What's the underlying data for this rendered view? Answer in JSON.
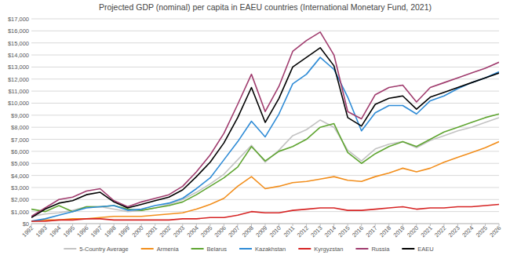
{
  "chart_data": {
    "type": "line",
    "title": "Projected GDP (nominal) per capita in EAEU countries (International Monetary Fund, 2021)",
    "x": [
      1992,
      1993,
      1994,
      1995,
      1996,
      1997,
      1998,
      1999,
      2000,
      2001,
      2002,
      2003,
      2004,
      2005,
      2006,
      2007,
      2008,
      2009,
      2010,
      2011,
      2012,
      2013,
      2014,
      2015,
      2016,
      2017,
      2018,
      2019,
      2020,
      2021,
      2022,
      2023,
      2024,
      2025,
      2026
    ],
    "xlim": [
      1992,
      2026
    ],
    "xticks": [
      1992,
      1993,
      1994,
      1995,
      1996,
      1997,
      1998,
      1999,
      2000,
      2001,
      2002,
      2003,
      2004,
      2005,
      2006,
      2007,
      2008,
      2009,
      2010,
      2011,
      2012,
      2013,
      2014,
      2015,
      2016,
      2017,
      2018,
      2019,
      2020,
      2021,
      2022,
      2023,
      2024,
      2025,
      2026
    ],
    "ylim": [
      0,
      17000
    ],
    "yticks": [
      {
        "value": 0,
        "label": "$0"
      },
      {
        "value": 1000,
        "label": "$1,000"
      },
      {
        "value": 2000,
        "label": "$2,000"
      },
      {
        "value": 3000,
        "label": "$3,000"
      },
      {
        "value": 4000,
        "label": "$4,000"
      },
      {
        "value": 5000,
        "label": "$5,000"
      },
      {
        "value": 6000,
        "label": "$6,000"
      },
      {
        "value": 7000,
        "label": "$7,000"
      },
      {
        "value": 8000,
        "label": "$8,000"
      },
      {
        "value": 9000,
        "label": "$9,000"
      },
      {
        "value": 10000,
        "label": "$10,000"
      },
      {
        "value": 11000,
        "label": "$11,000"
      },
      {
        "value": 12000,
        "label": "$12,000"
      },
      {
        "value": 13000,
        "label": "$13,000"
      },
      {
        "value": 14000,
        "label": "$14,000"
      },
      {
        "value": 15000,
        "label": "$15,000"
      },
      {
        "value": 16000,
        "label": "$16,000"
      },
      {
        "value": 17000,
        "label": "$17,000"
      }
    ],
    "grid": true,
    "legend": "bottom",
    "series": [
      {
        "name": "5-Country Average",
        "color": "#c3c3c3",
        "values": [
          600,
          800,
          900,
          1100,
          1400,
          1400,
          1200,
          1000,
          1100,
          1300,
          1600,
          2000,
          2600,
          3300,
          4100,
          5300,
          6500,
          5100,
          6100,
          7300,
          7800,
          8600,
          8000,
          6100,
          5200,
          6200,
          6600,
          6800,
          6300,
          6900,
          7300,
          7700,
          8000,
          8400,
          8800
        ]
      },
      {
        "name": "Armenia",
        "color": "#f28e1c",
        "values": [
          200,
          300,
          300,
          400,
          400,
          500,
          600,
          600,
          600,
          700,
          800,
          900,
          1200,
          1600,
          2100,
          3100,
          3900,
          2900,
          3100,
          3400,
          3500,
          3700,
          3900,
          3600,
          3500,
          3900,
          4200,
          4600,
          4300,
          4600,
          5100,
          5500,
          5900,
          6300,
          6800
        ]
      },
      {
        "name": "Belarus",
        "color": "#5fa531",
        "values": [
          1200,
          1000,
          1500,
          1000,
          1400,
          1400,
          1500,
          1200,
          1100,
          1300,
          1500,
          1800,
          2400,
          3100,
          3800,
          4700,
          6400,
          5200,
          6000,
          6400,
          7000,
          8000,
          8300,
          5900,
          5000,
          5800,
          6400,
          6800,
          6400,
          7000,
          7600,
          8000,
          8400,
          8800,
          9100
        ]
      },
      {
        "name": "Kazakhstan",
        "color": "#2e8bd6",
        "values": [
          200,
          400,
          700,
          1000,
          1300,
          1400,
          1500,
          1100,
          1200,
          1500,
          1700,
          2100,
          2900,
          3800,
          5300,
          6800,
          8500,
          7200,
          9100,
          11600,
          12400,
          13800,
          12800,
          10500,
          7700,
          9200,
          9800,
          9800,
          9100,
          10200,
          10600,
          11200,
          11700,
          12100,
          12600
        ]
      },
      {
        "name": "Kyrgyzstan",
        "color": "#d62424",
        "values": [
          200,
          200,
          300,
          300,
          400,
          400,
          300,
          300,
          300,
          300,
          300,
          400,
          400,
          500,
          500,
          700,
          1000,
          900,
          900,
          1100,
          1200,
          1300,
          1300,
          1100,
          1100,
          1200,
          1300,
          1400,
          1200,
          1300,
          1300,
          1400,
          1400,
          1500,
          1600
        ]
      },
      {
        "name": "Russia",
        "color": "#a03c6e",
        "values": [
          600,
          1300,
          2000,
          2200,
          2700,
          2900,
          1900,
          1400,
          1800,
          2100,
          2400,
          3100,
          4300,
          5700,
          7500,
          9900,
          12400,
          9300,
          11400,
          14300,
          15200,
          15900,
          14000,
          9300,
          8700,
          10700,
          11300,
          11500,
          10100,
          11300,
          11700,
          12100,
          12500,
          12900,
          13400
        ]
      },
      {
        "name": "EAEU",
        "color": "#000000",
        "values": [
          500,
          1200,
          1700,
          1900,
          2400,
          2600,
          1800,
          1300,
          1600,
          1900,
          2200,
          2800,
          3900,
          5100,
          6700,
          8800,
          11300,
          8400,
          10400,
          13000,
          13800,
          14600,
          13100,
          8800,
          8100,
          9900,
          10400,
          10600,
          9500,
          10500,
          10900,
          11300,
          11700,
          12100,
          12500
        ]
      }
    ]
  }
}
